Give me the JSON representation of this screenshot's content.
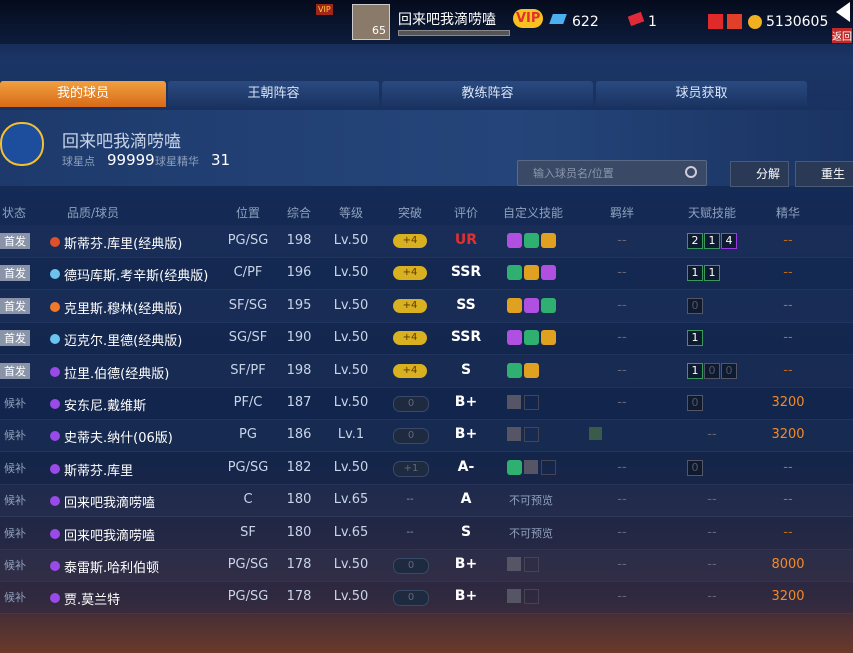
{
  "header": {
    "vip_icon": "VIP",
    "level": "65",
    "player_name": "回来吧我滴唠嗑",
    "vip_badge": "VIP",
    "diamonds": "622",
    "tickets": "1",
    "gold": "5130605",
    "back": "返回"
  },
  "tabs": [
    "我的球员",
    "王朝阵容",
    "教练阵容",
    "球员获取"
  ],
  "team": {
    "name": "回来吧我滴唠嗑",
    "star_points_label": "球星点",
    "star_points": "99999",
    "essence_label": "球星精华",
    "essence": "31",
    "search_placeholder": "输入球员名/位置",
    "decompose": "分解",
    "rebirth": "重生"
  },
  "table": {
    "headers": [
      "状态",
      "品质/球员",
      "位置",
      "综合",
      "等级",
      "突破",
      "评价",
      "自定义技能",
      "羁绊",
      "天赋技能",
      "精华"
    ],
    "rows": [
      {
        "status": "首发",
        "dot": "#e0502a",
        "name": "斯蒂芬.库里(经典版)",
        "position": "PG/SG",
        "overall": "198",
        "level": "Lv.50",
        "breakthrough": "+4",
        "grade": "UR",
        "bond": "--",
        "talent": [
          "2",
          "1",
          "4"
        ],
        "essence": "--"
      },
      {
        "status": "首发",
        "dot": "#6cc4ee",
        "name": "德玛库斯.考辛斯(经典版)",
        "position": "C/PF",
        "overall": "196",
        "level": "Lv.50",
        "breakthrough": "+4",
        "grade": "SSR",
        "bond": "--",
        "talent": [
          "1",
          "1"
        ],
        "essence": "--"
      },
      {
        "status": "首发",
        "dot": "#f07a2a",
        "name": "克里斯.穆林(经典版)",
        "position": "SF/SG",
        "overall": "195",
        "level": "Lv.50",
        "breakthrough": "+4",
        "grade": "SS",
        "bond": "--",
        "talent": [
          "0"
        ],
        "essence": "--"
      },
      {
        "status": "首发",
        "dot": "#6cc4ee",
        "name": "迈克尔.里德(经典版)",
        "position": "SG/SF",
        "overall": "190",
        "level": "Lv.50",
        "breakthrough": "+4",
        "grade": "SSR",
        "bond": "--",
        "talent": [
          "1"
        ],
        "essence": "--"
      },
      {
        "status": "首发",
        "dot": "#9a4ae8",
        "name": "拉里.伯德(经典版)",
        "position": "SF/PF",
        "overall": "198",
        "level": "Lv.50",
        "breakthrough": "+4",
        "grade": "S",
        "bond": "--",
        "talent": [
          "1",
          "0",
          "0"
        ],
        "essence": "--"
      },
      {
        "status": "候补",
        "dot": "#9a4ae8",
        "name": "安东尼.戴维斯",
        "position": "PF/C",
        "overall": "187",
        "level": "Lv.50",
        "breakthrough": "0",
        "grade": "B+",
        "bond": "--",
        "talent": [
          "0"
        ],
        "essence": "3200"
      },
      {
        "status": "候补",
        "dot": "#9a4ae8",
        "name": "史蒂夫.纳什(06版)",
        "position": "PG",
        "overall": "186",
        "level": "Lv.1",
        "breakthrough": "0",
        "grade": "B+",
        "talent": "--",
        "essence": "3200"
      },
      {
        "status": "候补",
        "dot": "#9a4ae8",
        "name": "斯蒂芬.库里",
        "position": "PG/SG",
        "overall": "182",
        "level": "Lv.50",
        "breakthrough": "+1",
        "grade": "A-",
        "bond": "--",
        "talent": [
          "0"
        ],
        "essence": "--"
      },
      {
        "status": "候补",
        "dot": "#9a4ae8",
        "name": "回来吧我滴唠嗑",
        "position": "C",
        "overall": "180",
        "level": "Lv.65",
        "breakthrough": "--",
        "grade": "A",
        "skills_note": "不可预览",
        "bond": "--",
        "talent": "--",
        "essence": "--"
      },
      {
        "status": "候补",
        "dot": "#9a4ae8",
        "name": "回来吧我滴唠嗑",
        "position": "SF",
        "overall": "180",
        "level": "Lv.65",
        "breakthrough": "--",
        "grade": "S",
        "skills_note": "不可预览",
        "bond": "--",
        "talent": "--",
        "essence": "--"
      },
      {
        "status": "候补",
        "dot": "#9a4ae8",
        "name": "泰雷斯.哈利伯顿",
        "position": "PG/SG",
        "overall": "178",
        "level": "Lv.50",
        "breakthrough": "0",
        "grade": "B+",
        "bond": "--",
        "talent": "--",
        "essence": "8000"
      },
      {
        "status": "候补",
        "dot": "#9a4ae8",
        "name": "贾.莫兰特",
        "position": "PG/SG",
        "overall": "178",
        "level": "Lv.50",
        "breakthrough": "0",
        "grade": "B+",
        "bond": "--",
        "talent": "--",
        "essence": "3200"
      }
    ]
  }
}
